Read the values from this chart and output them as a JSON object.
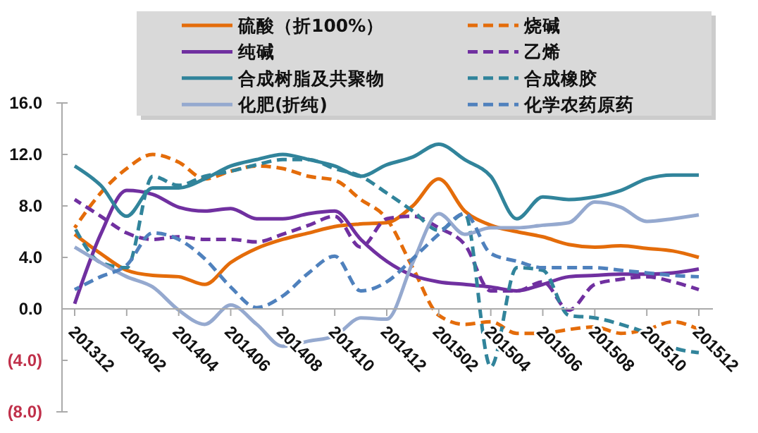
{
  "chart_data": {
    "type": "line",
    "categories": [
      "201312",
      null,
      "201402",
      null,
      "201404",
      null,
      "201406",
      null,
      "201408",
      null,
      "201410",
      null,
      "201412",
      null,
      "201502",
      null,
      "201504",
      null,
      "201506",
      null,
      "201508",
      null,
      "201510",
      null,
      "201512"
    ],
    "series": [
      {
        "name": "硫酸（折100%）",
        "color": "#e46c0a",
        "line_style": "solid",
        "values": [
          5.8,
          4.3,
          3.0,
          2.6,
          2.5,
          1.9,
          3.6,
          4.7,
          5.4,
          5.9,
          6.4,
          6.6,
          6.7,
          8.0,
          10.1,
          7.6,
          6.5,
          6.0,
          5.6,
          5.0,
          4.8,
          4.9,
          4.7,
          4.5,
          4.0
        ]
      },
      {
        "name": "烧碱",
        "color": "#e46c0a",
        "line_style": "dashed",
        "values": [
          6.3,
          9.0,
          10.9,
          12.0,
          11.4,
          10.1,
          10.7,
          11.1,
          10.9,
          10.3,
          10.0,
          8.5,
          7.0,
          3.2,
          -0.5,
          -1.2,
          -1.0,
          -1.9,
          -1.9,
          -1.6,
          -1.4,
          -1.9,
          -1.6,
          -1.0,
          -1.6
        ]
      },
      {
        "name": "纯碱",
        "color": "#7030a0",
        "line_style": "solid",
        "values": [
          0.4,
          5.8,
          9.2,
          8.9,
          7.9,
          7.6,
          7.8,
          7.0,
          7.0,
          7.4,
          7.6,
          5.4,
          3.7,
          2.6,
          2.1,
          1.9,
          1.7,
          1.4,
          1.9,
          2.5,
          2.6,
          2.7,
          2.7,
          2.8,
          3.1
        ]
      },
      {
        "name": "乙烯",
        "color": "#7030a0",
        "line_style": "dashed",
        "values": [
          8.5,
          7.2,
          5.9,
          5.4,
          5.6,
          5.4,
          5.4,
          5.2,
          5.8,
          6.5,
          7.2,
          4.8,
          7.0,
          7.2,
          6.3,
          5.0,
          1.4,
          1.4,
          2.1,
          -0.1,
          1.9,
          2.3,
          2.5,
          2.1,
          1.5
        ]
      },
      {
        "name": "合成树脂及共聚物",
        "color": "#31849b",
        "line_style": "solid",
        "values": [
          11.1,
          9.6,
          7.2,
          9.4,
          9.4,
          10.1,
          11.1,
          11.6,
          12.0,
          11.6,
          11.1,
          10.3,
          11.2,
          11.8,
          12.8,
          11.6,
          10.3,
          7.0,
          8.7,
          8.5,
          8.7,
          9.2,
          10.1,
          10.4,
          10.4
        ]
      },
      {
        "name": "合成橡胶",
        "color": "#31849b",
        "line_style": "dashed",
        "values": [
          6.3,
          3.6,
          3.2,
          10.3,
          9.6,
          10.3,
          10.7,
          11.2,
          11.6,
          11.6,
          10.9,
          10.3,
          9.0,
          7.6,
          6.1,
          7.4,
          -4.5,
          3.2,
          3.0,
          -0.5,
          -0.7,
          -1.2,
          -1.9,
          -3.0,
          -3.4
        ]
      },
      {
        "name": "化肥(折纯)",
        "color": "#95a9cf",
        "line_style": "solid",
        "values": [
          4.8,
          3.6,
          2.5,
          1.7,
          -0.1,
          -1.2,
          0.3,
          -1.2,
          -2.9,
          -2.5,
          -2.1,
          -0.7,
          -0.8,
          3.6,
          7.4,
          5.8,
          6.3,
          6.3,
          6.5,
          6.7,
          8.3,
          7.9,
          6.8,
          7.0,
          7.3
        ]
      },
      {
        "name": "化学农药原药",
        "color": "#4f81bd",
        "line_style": "dashed",
        "values": [
          1.5,
          2.5,
          3.4,
          5.9,
          5.4,
          3.9,
          1.7,
          0.1,
          1.0,
          2.8,
          4.1,
          1.4,
          2.1,
          3.9,
          5.8,
          7.4,
          4.3,
          3.7,
          3.2,
          3.2,
          3.2,
          3.0,
          2.8,
          2.6,
          2.5
        ]
      }
    ],
    "ylim": [
      -8,
      16
    ],
    "yticks": [
      {
        "value": 16,
        "label": "16.0"
      },
      {
        "value": 12,
        "label": "12.0"
      },
      {
        "value": 8,
        "label": "8.0"
      },
      {
        "value": 4,
        "label": "4.0"
      },
      {
        "value": 0,
        "label": "0.0"
      },
      {
        "value": -4,
        "label": "(4.0)"
      },
      {
        "value": -8,
        "label": "(8.0)"
      }
    ],
    "grid": false,
    "legend": "top",
    "marker": "none"
  }
}
